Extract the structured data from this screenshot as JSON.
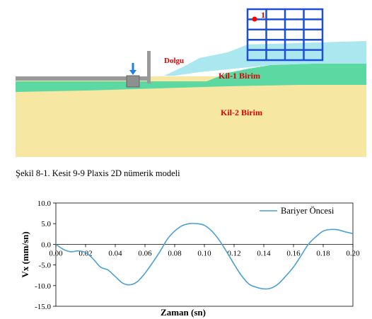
{
  "figure": {
    "labels": {
      "fill": "Dolgu",
      "clay1": "Kil-1 Birim",
      "clay2": "Kil-2 Birim",
      "point": "1"
    },
    "colors": {
      "fill_layer": "#aae7ef",
      "clay1": "#5cd9a2",
      "clay2": "#f6e8a2",
      "building": "#1c4fd6",
      "marker": "#ff0000",
      "arrow": "#1e7fe6",
      "wall": "#9a9a9a",
      "label_red": "#e00000"
    }
  },
  "caption": "Şekil 8-1. Kesit 9-9 Plaxis 2D nümerik modeli",
  "chart_data": {
    "type": "line",
    "xlabel": "Zaman (sn)",
    "ylabel": "Vx (mm/sn)",
    "xlim": [
      0,
      0.2
    ],
    "ylim": [
      -15,
      10
    ],
    "x_ticks": [
      "0.00",
      "0.02",
      "0.04",
      "0.06",
      "0.08",
      "0.10",
      "0.12",
      "0.14",
      "0.16",
      "0.18",
      "0.20"
    ],
    "y_ticks": [
      "10.0",
      "5.0",
      "0.0",
      "-5.0",
      "-10.0",
      "-15.0"
    ],
    "grid": false,
    "legend": "top-right",
    "series": [
      {
        "name": "Bariyer Öncesi",
        "color": "#4a9fd6",
        "x": [
          0,
          0.005,
          0.01,
          0.015,
          0.02,
          0.025,
          0.03,
          0.035,
          0.04,
          0.045,
          0.05,
          0.055,
          0.06,
          0.065,
          0.07,
          0.075,
          0.08,
          0.085,
          0.09,
          0.095,
          0.1,
          0.105,
          0.11,
          0.115,
          0.12,
          0.125,
          0.13,
          0.135,
          0.14,
          0.145,
          0.15,
          0.155,
          0.16,
          0.165,
          0.17,
          0.175,
          0.18,
          0.185,
          0.19,
          0.195,
          0.2
        ],
        "y": [
          0,
          -1.2,
          -1.8,
          -1.6,
          -2.0,
          -3.5,
          -5.5,
          -6.2,
          -7.8,
          -9.4,
          -9.8,
          -9.0,
          -7.0,
          -4.5,
          -1.8,
          1.2,
          3.2,
          4.5,
          5.0,
          5.0,
          4.6,
          3.2,
          1.0,
          -1.8,
          -4.8,
          -7.6,
          -9.6,
          -10.4,
          -10.8,
          -10.6,
          -9.5,
          -7.6,
          -5.5,
          -2.8,
          0.0,
          1.8,
          3.2,
          3.6,
          3.5,
          3.0,
          2.6
        ]
      }
    ]
  }
}
